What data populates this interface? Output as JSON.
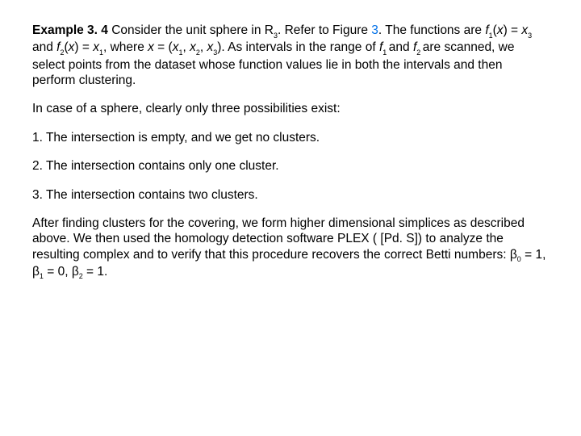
{
  "p1_bold": "Example 3. 4 ",
  "p1_a": "Consider the unit sphere in R",
  "p1_sub1": "3",
  "p1_b": ". Refer to Figure ",
  "p1_link": "3",
  "p1_c": ". The functions are ",
  "p1_f1": "f",
  "p1_f1sub": "1",
  "p1_d": "(",
  "p1_x1": "x",
  "p1_e": ") = ",
  "p1_x2": "x",
  "p1_x2sub": "3 ",
  "p1_f": "and ",
  "p1_f2": "f",
  "p1_f2sub": "2",
  "p1_g": "(",
  "p1_x3": "x",
  "p1_h": ") = ",
  "p1_x4": "x",
  "p1_x4sub": "1",
  "p1_i": ", where ",
  "p1_x5": "x",
  "p1_j": " = (",
  "p1_x6": "x",
  "p1_x6sub": "1",
  "p1_k": ", ",
  "p1_x7": "x",
  "p1_x7sub": "2",
  "p1_l": ", ",
  "p1_x8": "x",
  "p1_x8sub": "3",
  "p1_m": "). As intervals in the range of ",
  "p1_f3": "f",
  "p1_f3sub": "1 ",
  "p1_n": "and ",
  "p1_f4": "f",
  "p1_f4sub": "2 ",
  "p1_o": "are scanned, we select points from the dataset whose function values lie in both the intervals and then perform clustering.",
  "p2": "In case of a sphere, clearly only three possibilities exist:",
  "p3": "1. The intersection is empty, and we get no clusters.",
  "p4": "2. The intersection contains only one cluster.",
  "p5": "3. The intersection contains two clusters.",
  "p6_a": "After finding clusters for the covering, we form higher dimensional simplices as described above. We then used the homology detection software PLEX ( [Pd. S]) to analyze the resulting complex and to verify that this procedure recovers the correct Betti numbers: β",
  "p6_s1": "0",
  "p6_b": " = 1, β",
  "p6_s2": "1",
  "p6_c": " = 0, β",
  "p6_s3": "2",
  "p6_d": " = 1."
}
